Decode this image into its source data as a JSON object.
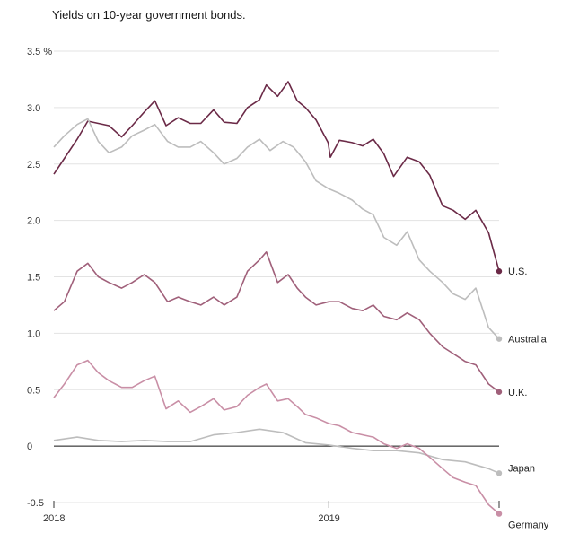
{
  "chart_data": {
    "type": "line",
    "title": "Yields on 10-year government bonds.",
    "xlabel": "",
    "ylabel": "",
    "y_unit": "%",
    "ylim": [
      -0.5,
      3.5
    ],
    "yticks": [
      -0.5,
      0,
      0.5,
      1.0,
      1.5,
      2.0,
      2.5,
      3.0,
      3.5
    ],
    "ytick_labels": [
      "-0.5",
      "0",
      "0.5",
      "1.0",
      "1.5",
      "2.0",
      "2.5",
      "3.0",
      "3.5 %"
    ],
    "xlim": [
      "2018-01-01",
      "2019-08-15"
    ],
    "xticks": [
      {
        "date": "2018-01-01",
        "label": "2018"
      },
      {
        "date": "2019-01-01",
        "label": "2019"
      },
      {
        "date": "2019-08-15",
        "label": ""
      }
    ],
    "grid": true,
    "series": [
      {
        "name": "U.S.",
        "color": "#6b2a47",
        "points": [
          [
            "2018-01-01",
            2.41
          ],
          [
            "2018-01-15",
            2.55
          ],
          [
            "2018-02-01",
            2.72
          ],
          [
            "2018-02-15",
            2.88
          ],
          [
            "2018-03-01",
            2.86
          ],
          [
            "2018-03-15",
            2.84
          ],
          [
            "2018-04-01",
            2.74
          ],
          [
            "2018-04-15",
            2.84
          ],
          [
            "2018-05-01",
            2.96
          ],
          [
            "2018-05-15",
            3.06
          ],
          [
            "2018-05-30",
            2.84
          ],
          [
            "2018-06-15",
            2.91
          ],
          [
            "2018-07-01",
            2.86
          ],
          [
            "2018-07-15",
            2.86
          ],
          [
            "2018-08-01",
            2.98
          ],
          [
            "2018-08-15",
            2.87
          ],
          [
            "2018-09-01",
            2.86
          ],
          [
            "2018-09-15",
            3.0
          ],
          [
            "2018-10-01",
            3.07
          ],
          [
            "2018-10-10",
            3.2
          ],
          [
            "2018-10-25",
            3.1
          ],
          [
            "2018-11-08",
            3.23
          ],
          [
            "2018-11-20",
            3.06
          ],
          [
            "2018-12-01",
            3.0
          ],
          [
            "2018-12-15",
            2.89
          ],
          [
            "2018-12-31",
            2.69
          ],
          [
            "2019-01-03",
            2.56
          ],
          [
            "2019-01-15",
            2.71
          ],
          [
            "2019-02-01",
            2.69
          ],
          [
            "2019-02-15",
            2.66
          ],
          [
            "2019-03-01",
            2.72
          ],
          [
            "2019-03-15",
            2.59
          ],
          [
            "2019-03-28",
            2.39
          ],
          [
            "2019-04-15",
            2.56
          ],
          [
            "2019-05-01",
            2.52
          ],
          [
            "2019-05-15",
            2.4
          ],
          [
            "2019-06-01",
            2.13
          ],
          [
            "2019-06-15",
            2.09
          ],
          [
            "2019-07-01",
            2.01
          ],
          [
            "2019-07-15",
            2.09
          ],
          [
            "2019-08-01",
            1.89
          ],
          [
            "2019-08-15",
            1.55
          ]
        ]
      },
      {
        "name": "Australia",
        "color": "#bdbdbd",
        "points": [
          [
            "2018-01-01",
            2.65
          ],
          [
            "2018-01-15",
            2.75
          ],
          [
            "2018-02-01",
            2.85
          ],
          [
            "2018-02-15",
            2.9
          ],
          [
            "2018-03-01",
            2.7
          ],
          [
            "2018-03-15",
            2.6
          ],
          [
            "2018-04-01",
            2.65
          ],
          [
            "2018-04-15",
            2.75
          ],
          [
            "2018-05-01",
            2.8
          ],
          [
            "2018-05-15",
            2.85
          ],
          [
            "2018-06-01",
            2.7
          ],
          [
            "2018-06-15",
            2.65
          ],
          [
            "2018-07-01",
            2.65
          ],
          [
            "2018-07-15",
            2.7
          ],
          [
            "2018-08-01",
            2.6
          ],
          [
            "2018-08-15",
            2.5
          ],
          [
            "2018-09-01",
            2.55
          ],
          [
            "2018-09-15",
            2.65
          ],
          [
            "2018-10-01",
            2.72
          ],
          [
            "2018-10-15",
            2.62
          ],
          [
            "2018-11-01",
            2.7
          ],
          [
            "2018-11-15",
            2.65
          ],
          [
            "2018-12-01",
            2.52
          ],
          [
            "2018-12-15",
            2.35
          ],
          [
            "2019-01-01",
            2.28
          ],
          [
            "2019-01-15",
            2.24
          ],
          [
            "2019-02-01",
            2.18
          ],
          [
            "2019-02-15",
            2.1
          ],
          [
            "2019-03-01",
            2.05
          ],
          [
            "2019-03-15",
            1.85
          ],
          [
            "2019-04-01",
            1.78
          ],
          [
            "2019-04-15",
            1.9
          ],
          [
            "2019-05-01",
            1.65
          ],
          [
            "2019-05-15",
            1.55
          ],
          [
            "2019-06-01",
            1.45
          ],
          [
            "2019-06-15",
            1.35
          ],
          [
            "2019-07-01",
            1.3
          ],
          [
            "2019-07-15",
            1.4
          ],
          [
            "2019-08-01",
            1.05
          ],
          [
            "2019-08-15",
            0.95
          ]
        ]
      },
      {
        "name": "U.K.",
        "color": "#a0607a",
        "points": [
          [
            "2018-01-01",
            1.2
          ],
          [
            "2018-01-15",
            1.28
          ],
          [
            "2018-02-01",
            1.55
          ],
          [
            "2018-02-15",
            1.62
          ],
          [
            "2018-03-01",
            1.5
          ],
          [
            "2018-03-15",
            1.45
          ],
          [
            "2018-04-01",
            1.4
          ],
          [
            "2018-04-15",
            1.45
          ],
          [
            "2018-05-01",
            1.52
          ],
          [
            "2018-05-15",
            1.45
          ],
          [
            "2018-06-01",
            1.28
          ],
          [
            "2018-06-15",
            1.32
          ],
          [
            "2018-07-01",
            1.28
          ],
          [
            "2018-07-15",
            1.25
          ],
          [
            "2018-08-01",
            1.32
          ],
          [
            "2018-08-15",
            1.25
          ],
          [
            "2018-09-01",
            1.32
          ],
          [
            "2018-09-15",
            1.55
          ],
          [
            "2018-10-01",
            1.65
          ],
          [
            "2018-10-10",
            1.72
          ],
          [
            "2018-10-25",
            1.45
          ],
          [
            "2018-11-08",
            1.52
          ],
          [
            "2018-11-20",
            1.4
          ],
          [
            "2018-12-01",
            1.32
          ],
          [
            "2018-12-15",
            1.25
          ],
          [
            "2019-01-01",
            1.28
          ],
          [
            "2019-01-15",
            1.28
          ],
          [
            "2019-02-01",
            1.22
          ],
          [
            "2019-02-15",
            1.2
          ],
          [
            "2019-03-01",
            1.25
          ],
          [
            "2019-03-15",
            1.15
          ],
          [
            "2019-04-01",
            1.12
          ],
          [
            "2019-04-15",
            1.18
          ],
          [
            "2019-05-01",
            1.12
          ],
          [
            "2019-05-15",
            1.0
          ],
          [
            "2019-06-01",
            0.88
          ],
          [
            "2019-06-15",
            0.82
          ],
          [
            "2019-07-01",
            0.75
          ],
          [
            "2019-07-15",
            0.72
          ],
          [
            "2019-08-01",
            0.55
          ],
          [
            "2019-08-15",
            0.48
          ]
        ]
      },
      {
        "name": "Japan",
        "color": "#bdbdbd",
        "points": [
          [
            "2018-01-01",
            0.05
          ],
          [
            "2018-02-01",
            0.08
          ],
          [
            "2018-03-01",
            0.05
          ],
          [
            "2018-04-01",
            0.04
          ],
          [
            "2018-05-01",
            0.05
          ],
          [
            "2018-06-01",
            0.04
          ],
          [
            "2018-07-01",
            0.04
          ],
          [
            "2018-08-01",
            0.1
          ],
          [
            "2018-09-01",
            0.12
          ],
          [
            "2018-10-01",
            0.15
          ],
          [
            "2018-11-01",
            0.12
          ],
          [
            "2018-12-01",
            0.03
          ],
          [
            "2019-01-01",
            0.01
          ],
          [
            "2019-02-01",
            -0.02
          ],
          [
            "2019-03-01",
            -0.04
          ],
          [
            "2019-04-01",
            -0.04
          ],
          [
            "2019-05-01",
            -0.06
          ],
          [
            "2019-06-01",
            -0.12
          ],
          [
            "2019-07-01",
            -0.14
          ],
          [
            "2019-08-01",
            -0.2
          ],
          [
            "2019-08-15",
            -0.24
          ]
        ]
      },
      {
        "name": "Germany",
        "color": "#c98fa6",
        "points": [
          [
            "2018-01-01",
            0.43
          ],
          [
            "2018-01-15",
            0.55
          ],
          [
            "2018-02-01",
            0.72
          ],
          [
            "2018-02-15",
            0.76
          ],
          [
            "2018-03-01",
            0.65
          ],
          [
            "2018-03-15",
            0.58
          ],
          [
            "2018-04-01",
            0.52
          ],
          [
            "2018-04-15",
            0.52
          ],
          [
            "2018-05-01",
            0.58
          ],
          [
            "2018-05-15",
            0.62
          ],
          [
            "2018-05-30",
            0.33
          ],
          [
            "2018-06-15",
            0.4
          ],
          [
            "2018-07-01",
            0.3
          ],
          [
            "2018-07-15",
            0.35
          ],
          [
            "2018-08-01",
            0.42
          ],
          [
            "2018-08-15",
            0.32
          ],
          [
            "2018-09-01",
            0.35
          ],
          [
            "2018-09-15",
            0.45
          ],
          [
            "2018-10-01",
            0.52
          ],
          [
            "2018-10-10",
            0.55
          ],
          [
            "2018-10-25",
            0.4
          ],
          [
            "2018-11-08",
            0.42
          ],
          [
            "2018-11-20",
            0.35
          ],
          [
            "2018-12-01",
            0.28
          ],
          [
            "2018-12-15",
            0.25
          ],
          [
            "2019-01-01",
            0.2
          ],
          [
            "2019-01-15",
            0.18
          ],
          [
            "2019-02-01",
            0.12
          ],
          [
            "2019-02-15",
            0.1
          ],
          [
            "2019-03-01",
            0.08
          ],
          [
            "2019-03-15",
            0.02
          ],
          [
            "2019-04-01",
            -0.02
          ],
          [
            "2019-04-15",
            0.02
          ],
          [
            "2019-05-01",
            -0.02
          ],
          [
            "2019-05-15",
            -0.1
          ],
          [
            "2019-06-01",
            -0.2
          ],
          [
            "2019-06-15",
            -0.28
          ],
          [
            "2019-07-01",
            -0.32
          ],
          [
            "2019-07-15",
            -0.35
          ],
          [
            "2019-08-01",
            -0.52
          ],
          [
            "2019-08-15",
            -0.6
          ]
        ]
      }
    ]
  },
  "legend_labels": [
    "U.S.",
    "Australia",
    "U.K.",
    "Japan",
    "Germany"
  ]
}
